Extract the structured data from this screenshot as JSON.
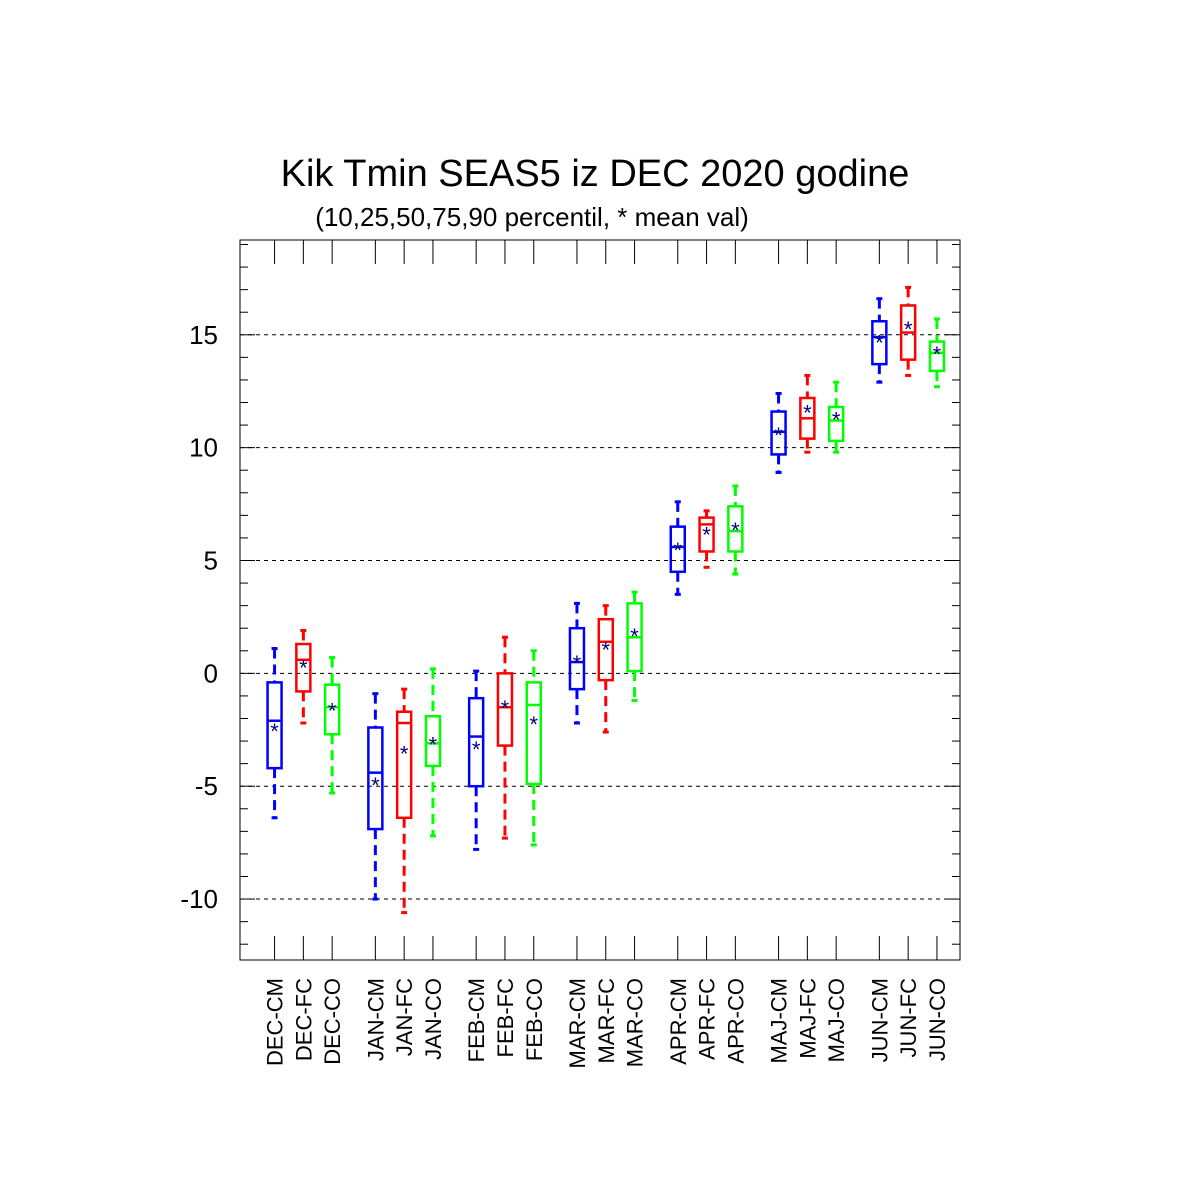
{
  "chart_data": {
    "type": "box",
    "title": "Kik Tmin SEAS5 iz DEC 2020 godine",
    "subtitle": "(10,25,50,75,90 percentil, * mean val)",
    "xlabel": "",
    "ylabel": "",
    "ylim": [
      -12.7,
      19.2
    ],
    "yticks": [
      -10,
      -5,
      0,
      5,
      10,
      15
    ],
    "ytick_labels": [
      "-10",
      "-5",
      "0",
      "5",
      "10",
      "15"
    ],
    "grid": "horizontal-dashed",
    "colors": {
      "CM": "#0000ff",
      "FC": "#ff0000",
      "CO": "#00ff00",
      "mean_marker": "#000080"
    },
    "groups": [
      "DEC",
      "JAN",
      "FEB",
      "MAR",
      "APR",
      "MAJ",
      "JUN"
    ],
    "categories": [
      "DEC-CM",
      "DEC-FC",
      "DEC-CO",
      "JAN-CM",
      "JAN-FC",
      "JAN-CO",
      "FEB-CM",
      "FEB-FC",
      "FEB-CO",
      "MAR-CM",
      "MAR-FC",
      "MAR-CO",
      "APR-CM",
      "APR-FC",
      "APR-CO",
      "MAJ-CM",
      "MAJ-FC",
      "MAJ-CO",
      "JUN-CM",
      "JUN-FC",
      "JUN-CO"
    ],
    "boxes": [
      {
        "label": "DEC-CM",
        "p10": -6.4,
        "p25": -4.2,
        "p50": -2.1,
        "p75": -0.4,
        "p90": 1.1,
        "mean": -2.5
      },
      {
        "label": "DEC-FC",
        "p10": -2.2,
        "p25": -0.8,
        "p50": 0.6,
        "p75": 1.3,
        "p90": 1.9,
        "mean": 0.3
      },
      {
        "label": "DEC-CO",
        "p10": -5.3,
        "p25": -2.7,
        "p50": -1.5,
        "p75": -0.5,
        "p90": 0.7,
        "mean": -1.6
      },
      {
        "label": "JAN-CM",
        "p10": -10.0,
        "p25": -6.9,
        "p50": -4.4,
        "p75": -2.4,
        "p90": -0.9,
        "mean": -4.9
      },
      {
        "label": "JAN-FC",
        "p10": -10.6,
        "p25": -6.4,
        "p50": -2.2,
        "p75": -1.7,
        "p90": -0.7,
        "mean": -3.5
      },
      {
        "label": "JAN-CO",
        "p10": -7.2,
        "p25": -4.1,
        "p50": -3.1,
        "p75": -1.9,
        "p90": 0.2,
        "mean": -3.1
      },
      {
        "label": "FEB-CM",
        "p10": -7.8,
        "p25": -5.0,
        "p50": -2.8,
        "p75": -1.1,
        "p90": 0.1,
        "mean": -3.3
      },
      {
        "label": "FEB-FC",
        "p10": -7.3,
        "p25": -3.2,
        "p50": -1.5,
        "p75": 0.0,
        "p90": 1.6,
        "mean": -1.5
      },
      {
        "label": "FEB-CO",
        "p10": -7.6,
        "p25": -4.9,
        "p50": -1.4,
        "p75": -0.4,
        "p90": 1.0,
        "mean": -2.2
      },
      {
        "label": "MAR-CM",
        "p10": -2.2,
        "p25": -0.7,
        "p50": 0.5,
        "p75": 2.0,
        "p90": 3.1,
        "mean": 0.5
      },
      {
        "label": "MAR-FC",
        "p10": -2.6,
        "p25": -0.3,
        "p50": 1.4,
        "p75": 2.4,
        "p90": 3.0,
        "mean": 1.1
      },
      {
        "label": "MAR-CO",
        "p10": -1.2,
        "p25": 0.1,
        "p50": 1.6,
        "p75": 3.1,
        "p90": 3.6,
        "mean": 1.7
      },
      {
        "label": "APR-CM",
        "p10": 3.5,
        "p25": 4.5,
        "p50": 5.6,
        "p75": 6.5,
        "p90": 7.6,
        "mean": 5.5
      },
      {
        "label": "APR-FC",
        "p10": 4.7,
        "p25": 5.4,
        "p50": 6.6,
        "p75": 6.9,
        "p90": 7.2,
        "mean": 6.2
      },
      {
        "label": "APR-CO",
        "p10": 4.4,
        "p25": 5.4,
        "p50": 6.3,
        "p75": 7.4,
        "p90": 8.3,
        "mean": 6.4
      },
      {
        "label": "MAJ-CM",
        "p10": 8.9,
        "p25": 9.7,
        "p50": 10.7,
        "p75": 11.6,
        "p90": 12.4,
        "mean": 10.6
      },
      {
        "label": "MAJ-FC",
        "p10": 9.8,
        "p25": 10.4,
        "p50": 11.3,
        "p75": 12.2,
        "p90": 13.2,
        "mean": 11.6
      },
      {
        "label": "MAJ-CO",
        "p10": 9.8,
        "p25": 10.3,
        "p50": 11.2,
        "p75": 11.8,
        "p90": 12.9,
        "mean": 11.3
      },
      {
        "label": "JUN-CM",
        "p10": 12.9,
        "p25": 13.7,
        "p50": 14.9,
        "p75": 15.6,
        "p90": 16.6,
        "mean": 14.7
      },
      {
        "label": "JUN-FC",
        "p10": 13.2,
        "p25": 13.9,
        "p50": 15.1,
        "p75": 16.3,
        "p90": 17.1,
        "mean": 15.3
      },
      {
        "label": "JUN-CO",
        "p10": 12.7,
        "p25": 13.4,
        "p50": 14.2,
        "p75": 14.7,
        "p90": 15.7,
        "mean": 14.2
      }
    ]
  }
}
